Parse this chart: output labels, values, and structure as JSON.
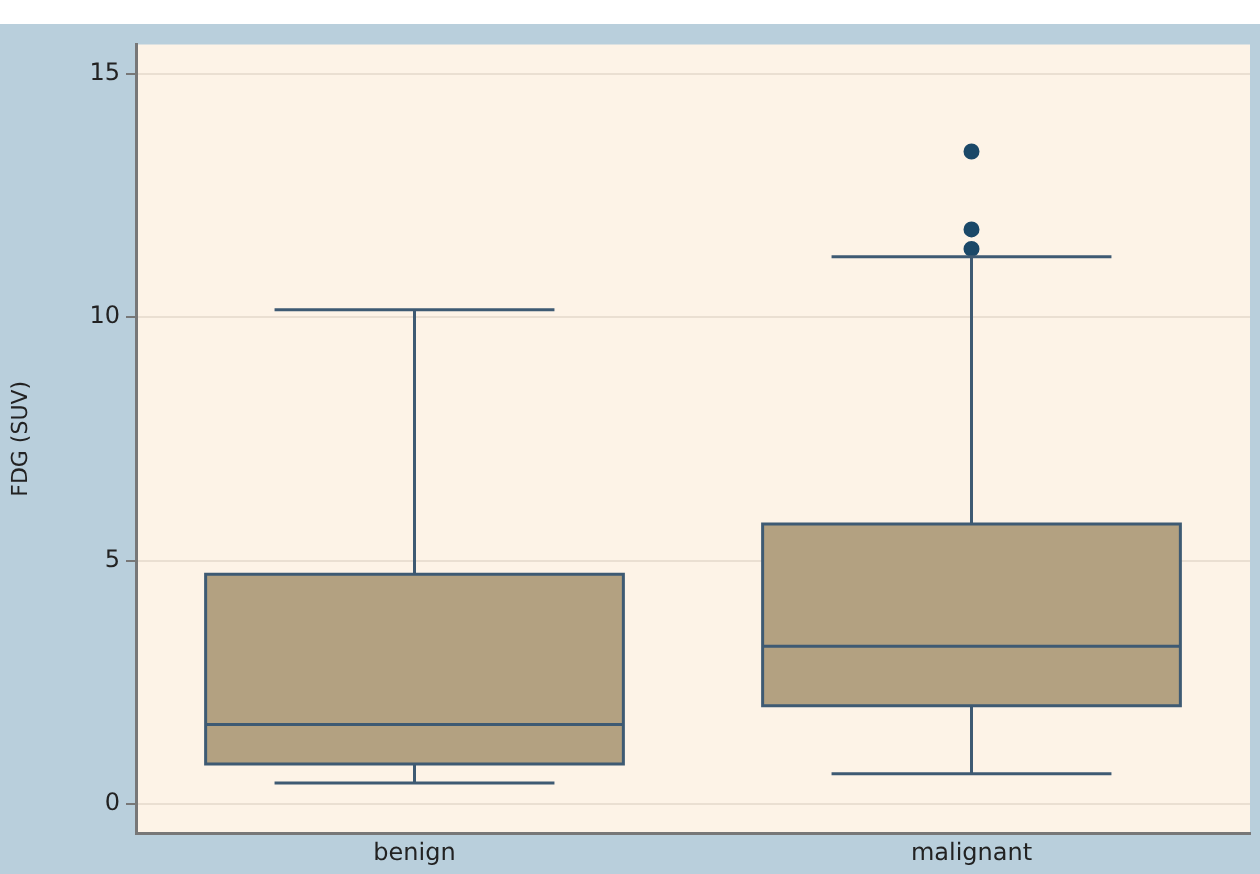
{
  "chart_data": {
    "type": "box",
    "ylabel": "FDG (SUV)",
    "categories": [
      "benign",
      "malignant"
    ],
    "color": "#b3a181",
    "ylim": [
      -0.6,
      15.6
    ],
    "yticks": [
      0,
      5,
      10,
      15
    ],
    "grid": "y",
    "legend": false,
    "boxes": [
      {
        "low": 0.43,
        "q1": 0.82,
        "median": 1.63,
        "q3": 4.72,
        "high": 10.15
      },
      {
        "low": 0.62,
        "q1": 2.02,
        "median": 3.24,
        "q3": 5.75,
        "high": 11.24,
        "outliers": [
          11.4,
          11.8,
          13.4
        ]
      }
    ]
  }
}
